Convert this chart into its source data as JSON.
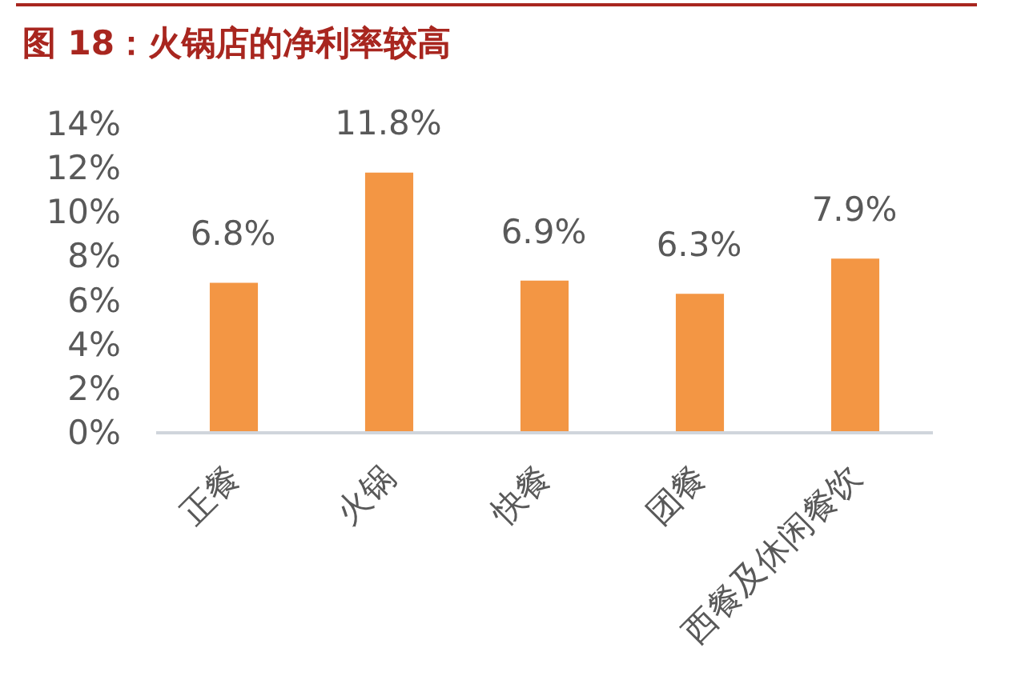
{
  "chart_data": {
    "type": "bar",
    "title": "图 18：火锅店的净利率较高",
    "categories": [
      "正餐",
      "火锅",
      "快餐",
      "团餐",
      "西餐及休闲餐饮"
    ],
    "values": [
      6.8,
      11.8,
      6.9,
      6.3,
      7.9
    ],
    "value_labels": [
      "6.8%",
      "11.8%",
      "6.9%",
      "6.3%",
      "7.9%"
    ],
    "color": "#f39644",
    "ylim": [
      0,
      14
    ],
    "yticks": [
      {
        "value": 0,
        "label": "0%"
      },
      {
        "value": 2,
        "label": "2%"
      },
      {
        "value": 4,
        "label": "4%"
      },
      {
        "value": 6,
        "label": "6%"
      },
      {
        "value": 8,
        "label": "8%"
      },
      {
        "value": 10,
        "label": "10%"
      },
      {
        "value": 12,
        "label": "12%"
      },
      {
        "value": 14,
        "label": "14%"
      }
    ],
    "grid": false
  }
}
